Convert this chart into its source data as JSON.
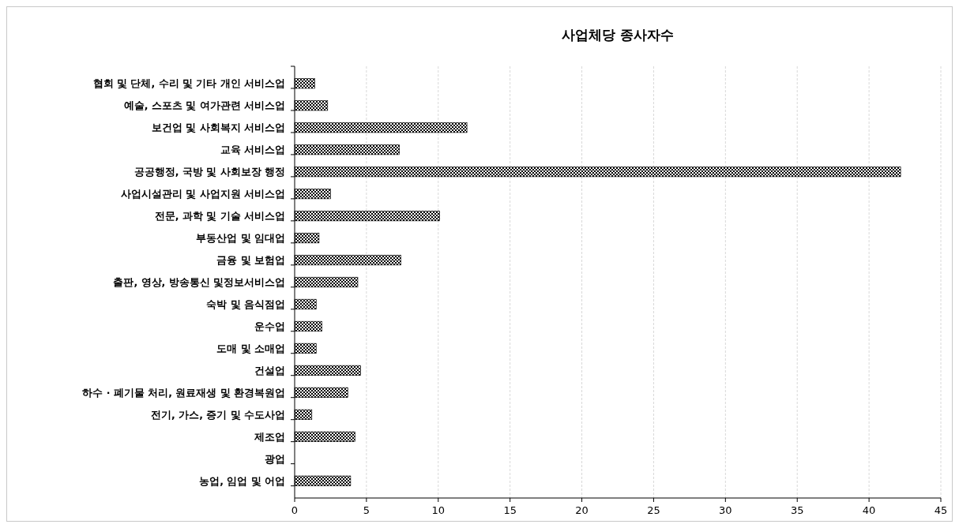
{
  "chart_data": {
    "type": "bar",
    "title": "사업체당 종사자수",
    "orientation": "horizontal",
    "categories": [
      "협회 및 단체, 수리 및 기타 개인 서비스업",
      "예술, 스포츠 및 여가관련 서비스업",
      "보건업 및 사회복지 서비스업",
      "교육 서비스업",
      "공공행정, 국방 및 사회보장 행정",
      "사업시설관리 및 사업지원 서비스업",
      "전문, 과학 및 기술 서비스업",
      "부동산업 및 임대업",
      "금융 및 보험업",
      "출판, 영상, 방송통신 및정보서비스업",
      "숙박 및 음식점업",
      "운수업",
      "도매 및 소매업",
      "건설업",
      "하수 · 폐기물 처리, 원료재생 및 환경복원업",
      "전기, 가스, 증기 및 수도사업",
      "제조업",
      "광업",
      "농업, 임업 및 어업"
    ],
    "values": [
      1.4,
      2.3,
      12.0,
      7.3,
      42.2,
      2.5,
      10.1,
      1.7,
      7.4,
      4.4,
      1.5,
      1.9,
      1.5,
      4.6,
      3.7,
      1.2,
      4.2,
      0,
      3.9
    ],
    "color": "#000000",
    "xlim": [
      0,
      45
    ],
    "xticks": [
      0,
      5,
      10,
      15,
      20,
      25,
      30,
      35,
      40,
      45
    ],
    "grid": "x"
  }
}
